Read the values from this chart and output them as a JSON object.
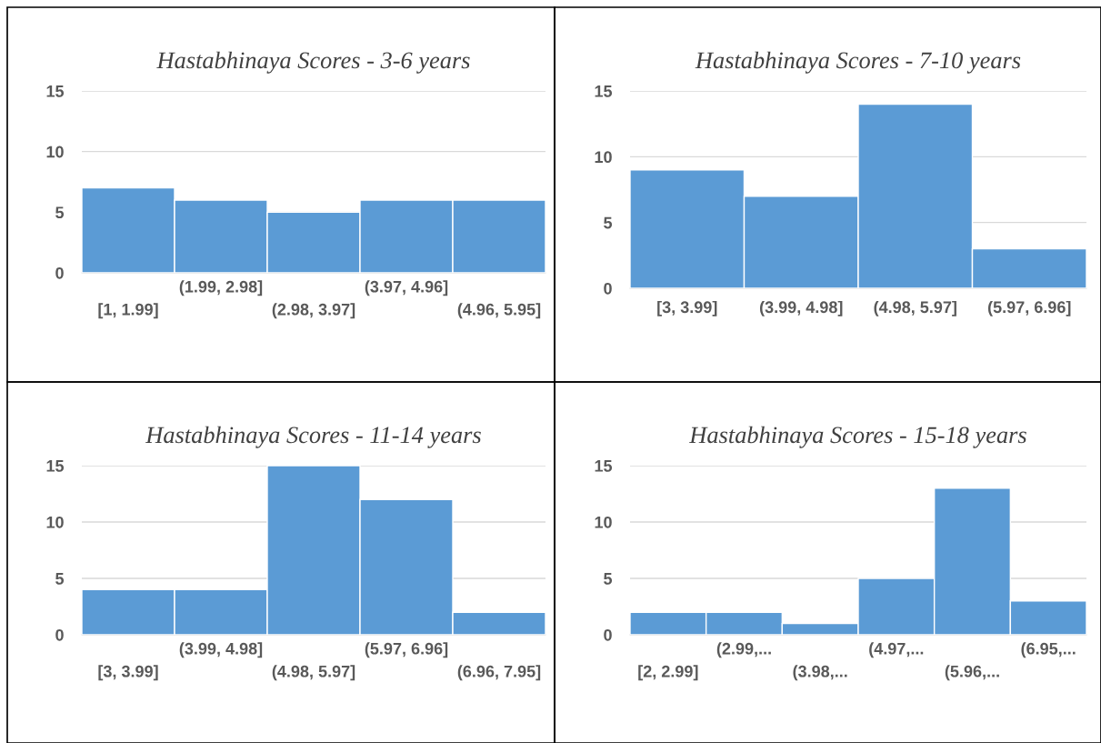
{
  "chart_data": [
    {
      "type": "bar",
      "title": "Hastabhinaya Scores - 3-6 years",
      "categories": [
        "[1, 1.99]",
        "(1.99, 2.98]",
        "(2.98, 3.97]",
        "(3.97, 4.96]",
        "(4.96, 5.95]"
      ],
      "values": [
        7,
        6,
        5,
        6,
        6
      ],
      "color": "#5b9bd5",
      "ylim": [
        0,
        15
      ],
      "yticks": [
        0,
        5,
        10,
        15
      ],
      "grid": "y"
    },
    {
      "type": "bar",
      "title": "Hastabhinaya Scores - 7-10 years",
      "categories": [
        "[3, 3.99]",
        "(3.99, 4.98]",
        "(4.98, 5.97]",
        "(5.97, 6.96]"
      ],
      "values": [
        9,
        7,
        14,
        3
      ],
      "color": "#5b9bd5",
      "ylim": [
        0,
        15
      ],
      "yticks": [
        0,
        5,
        10,
        15
      ],
      "grid": "y"
    },
    {
      "type": "bar",
      "title": "Hastabhinaya Scores - 11-14 years",
      "categories": [
        "[3, 3.99]",
        "(3.99, 4.98]",
        "(4.98, 5.97]",
        "(5.97, 6.96]",
        "(6.96, 7.95]"
      ],
      "values": [
        4,
        4,
        15,
        12,
        2
      ],
      "color": "#5b9bd5",
      "ylim": [
        0,
        15
      ],
      "yticks": [
        0,
        5,
        10,
        15
      ],
      "grid": "y"
    },
    {
      "type": "bar",
      "title": "Hastabhinaya Scores - 15-18 years",
      "categories": [
        "[2, 2.99]",
        "(2.99,...",
        "(3.98,...",
        "(4.97,...",
        "(5.96,...",
        "(6.95,..."
      ],
      "values": [
        2,
        2,
        1,
        5,
        13,
        3
      ],
      "color": "#5b9bd5",
      "ylim": [
        0,
        15
      ],
      "yticks": [
        0,
        5,
        10,
        15
      ],
      "grid": "y"
    }
  ]
}
